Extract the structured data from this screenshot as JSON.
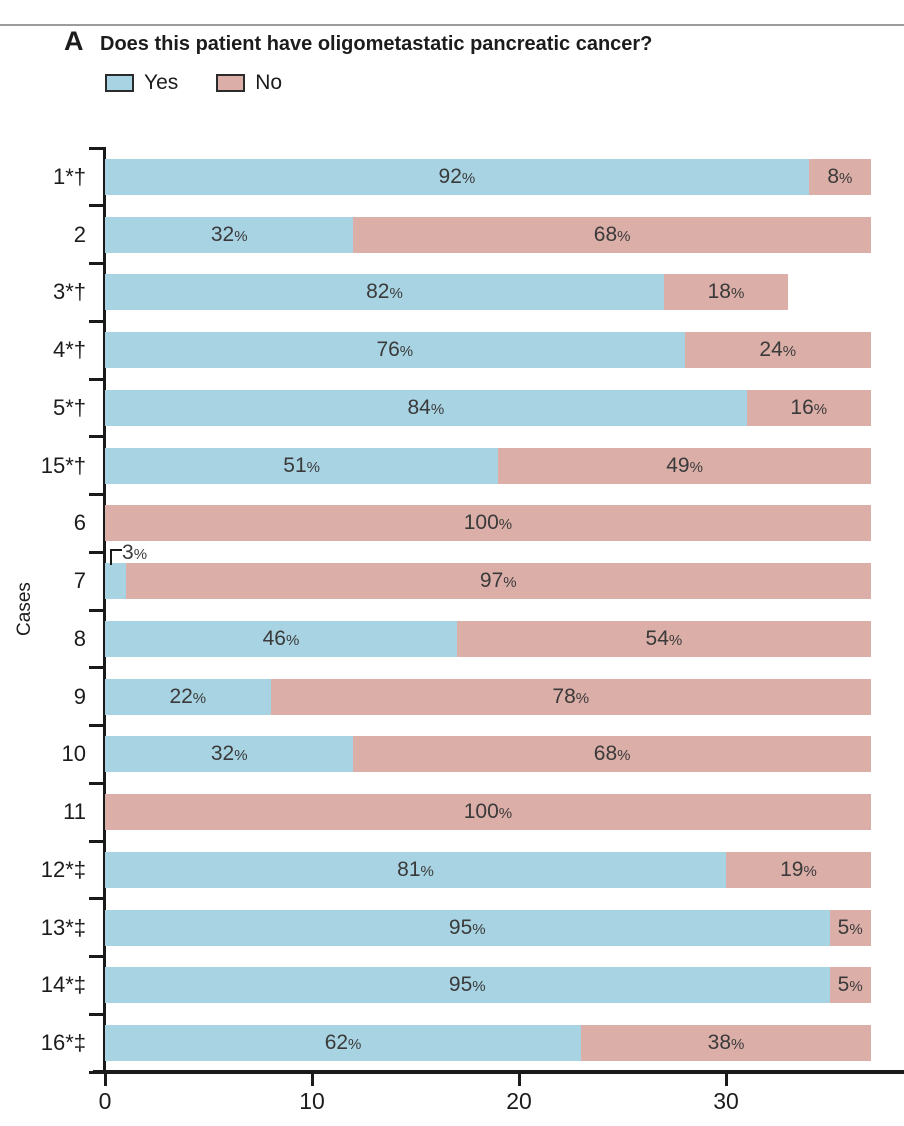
{
  "panel_label": "A",
  "legend": {
    "yes_label": "Yes",
    "no_label": "No"
  },
  "chart_data": {
    "type": "bar",
    "orientation": "horizontal",
    "stacked": true,
    "title": "Does this patient have oligometastatic pancreatic cancer?",
    "xlabel": "",
    "ylabel": "Cases",
    "x_ticks": [
      0,
      10,
      20,
      30
    ],
    "xlim": [
      0,
      38.6
    ],
    "grid": false,
    "legend_position": "top-left",
    "series": [
      "Yes",
      "No"
    ],
    "colors": {
      "yes": "#a8d3e3",
      "no": "#dbaea8"
    },
    "rows": [
      {
        "case": "1*†",
        "yes_n": 34,
        "no_n": 3,
        "yes_label": "92%",
        "no_label": "8%"
      },
      {
        "case": "2",
        "yes_n": 12,
        "no_n": 25,
        "yes_label": "32%",
        "no_label": "68%"
      },
      {
        "case": "3*†",
        "yes_n": 27,
        "no_n": 6,
        "yes_label": "82%",
        "no_label": "18%"
      },
      {
        "case": "4*†",
        "yes_n": 28,
        "no_n": 9,
        "yes_label": "76%",
        "no_label": "24%"
      },
      {
        "case": "5*†",
        "yes_n": 31,
        "no_n": 6,
        "yes_label": "84%",
        "no_label": "16%"
      },
      {
        "case": "15*†",
        "yes_n": 19,
        "no_n": 18,
        "yes_label": "51%",
        "no_label": "49%"
      },
      {
        "case": "6",
        "yes_n": 0,
        "no_n": 37,
        "yes_label": "",
        "no_label": "100%"
      },
      {
        "case": "7",
        "yes_n": 1,
        "no_n": 36,
        "yes_label": "3%",
        "no_label": "97%",
        "callout": true
      },
      {
        "case": "8",
        "yes_n": 17,
        "no_n": 20,
        "yes_label": "46%",
        "no_label": "54%"
      },
      {
        "case": "9",
        "yes_n": 8,
        "no_n": 29,
        "yes_label": "22%",
        "no_label": "78%"
      },
      {
        "case": "10",
        "yes_n": 12,
        "no_n": 25,
        "yes_label": "32%",
        "no_label": "68%"
      },
      {
        "case": "11",
        "yes_n": 0,
        "no_n": 37,
        "yes_label": "",
        "no_label": "100%"
      },
      {
        "case": "12*‡",
        "yes_n": 30,
        "no_n": 7,
        "yes_label": "81%",
        "no_label": "19%"
      },
      {
        "case": "13*‡",
        "yes_n": 35,
        "no_n": 2,
        "yes_label": "95%",
        "no_label": "5%"
      },
      {
        "case": "14*‡",
        "yes_n": 35,
        "no_n": 2,
        "yes_label": "95%",
        "no_label": "5%"
      },
      {
        "case": "16*‡",
        "yes_n": 23,
        "no_n": 14,
        "yes_label": "62%",
        "no_label": "38%"
      }
    ]
  }
}
